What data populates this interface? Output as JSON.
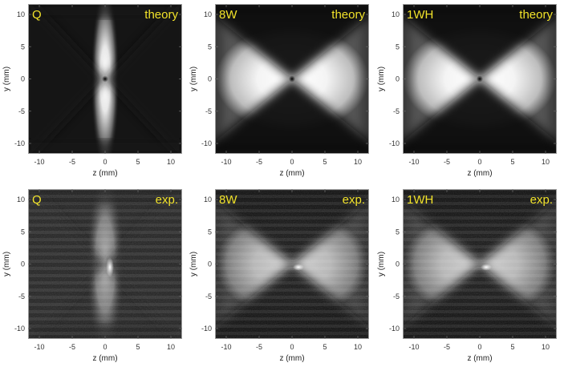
{
  "figure": {
    "tag_color": "#f2e32a",
    "panels": [
      {
        "name": "Q",
        "label_left": "Q",
        "label_right": "theory",
        "kind": "theory",
        "pattern": "quadrupole",
        "xlabel": "z (mm)",
        "ylabel": "y (mm)",
        "xticks": [
          "-10",
          "-5",
          "0",
          "5",
          "10"
        ],
        "yticks": [
          "10",
          "5",
          "0",
          "-5",
          "-10"
        ]
      },
      {
        "name": "8W",
        "label_left": "8W",
        "label_right": "theory",
        "kind": "theory",
        "pattern": "horizontal",
        "xlabel": "z (mm)",
        "ylabel": "y (mm)",
        "xticks": [
          "-10",
          "-5",
          "0",
          "5",
          "10"
        ],
        "yticks": [
          "10",
          "5",
          "0",
          "-5",
          "-10"
        ]
      },
      {
        "name": "1WH",
        "label_left": "1WH",
        "label_right": "theory",
        "kind": "theory",
        "pattern": "horizontal",
        "xlabel": "z (mm)",
        "ylabel": "y (mm)",
        "xticks": [
          "-10",
          "-5",
          "0",
          "5",
          "10"
        ],
        "yticks": [
          "10",
          "5",
          "0",
          "-5",
          "-10"
        ]
      },
      {
        "name": "Q",
        "label_left": "Q",
        "label_right": "exp.",
        "kind": "experiment",
        "pattern": "quadrupole",
        "xlabel": "z (mm)",
        "ylabel": "y (mm)",
        "xticks": [
          "-10",
          "-5",
          "0",
          "5",
          "10"
        ],
        "yticks": [
          "10",
          "5",
          "0",
          "-5",
          "-10"
        ]
      },
      {
        "name": "8W",
        "label_left": "8W",
        "label_right": "exp.",
        "kind": "experiment",
        "pattern": "horizontal",
        "xlabel": "z (mm)",
        "ylabel": "y (mm)",
        "xticks": [
          "-10",
          "-5",
          "0",
          "5",
          "10"
        ],
        "yticks": [
          "10",
          "5",
          "0",
          "-5",
          "-10"
        ]
      },
      {
        "name": "1WH",
        "label_left": "1WH",
        "label_right": "exp.",
        "kind": "experiment",
        "pattern": "horizontal",
        "xlabel": "z (mm)",
        "ylabel": "y (mm)",
        "xticks": [
          "-10",
          "-5",
          "0",
          "5",
          "10"
        ],
        "yticks": [
          "10",
          "5",
          "0",
          "-5",
          "-10"
        ]
      }
    ]
  }
}
